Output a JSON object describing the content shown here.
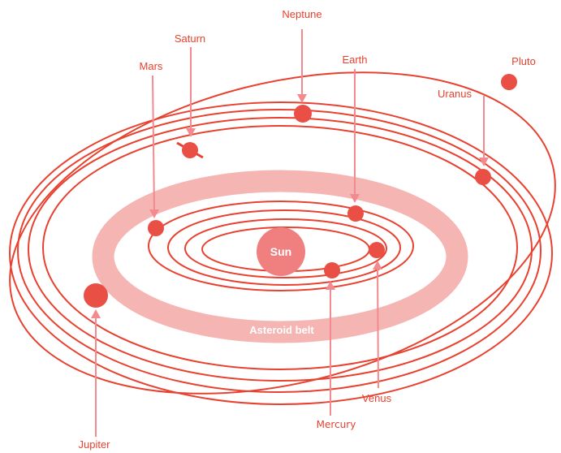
{
  "labels": {
    "sun": "Sun",
    "asteroid_belt": "Asteroid belt",
    "mercury": "Mercury",
    "venus": "Venus",
    "earth": "Earth",
    "mars": "Mars",
    "jupiter": "Jupiter",
    "saturn": "Saturn",
    "uranus": "Uranus",
    "neptune": "Neptune",
    "pluto": "Pluto"
  },
  "colors": {
    "orbit": "#e8412f",
    "planet": "#ea4f45",
    "sun": "#f08080",
    "asteroid_belt": "#f5b5b3",
    "pointer": "#f28a8f",
    "label": "#e8412f"
  }
}
